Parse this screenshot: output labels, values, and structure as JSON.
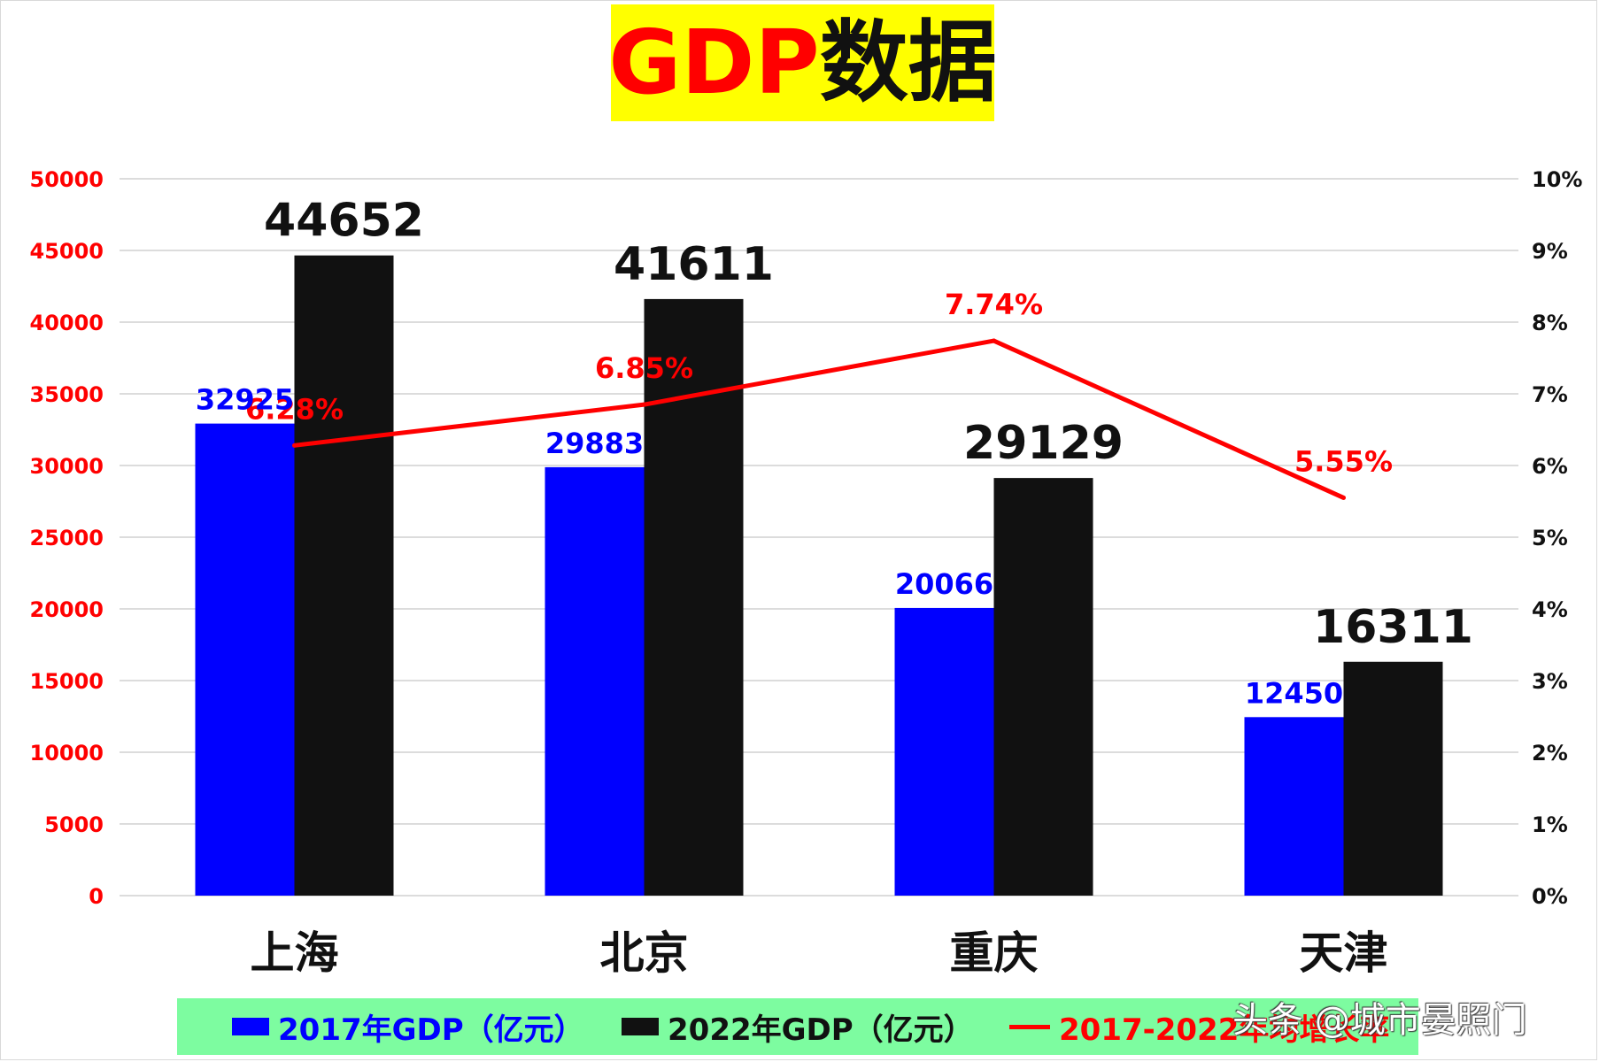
{
  "title": {
    "part1": "GDP",
    "part2": "数据"
  },
  "colors": {
    "bar2017": "#0000ff",
    "bar2022": "#111111",
    "growth": "#ff0000",
    "left_axis": "#ff0000",
    "right_axis": "#111111",
    "title_bg": "#ffff00",
    "legend_bg": "#7dfca0",
    "grid": "#d0d0d0"
  },
  "chart_data": {
    "type": "bar",
    "categories": [
      "上海",
      "北京",
      "重庆",
      "天津"
    ],
    "series": [
      {
        "name": "2017年GDP（亿元）",
        "axis": "left",
        "values": [
          32925,
          29883,
          20066,
          12450
        ]
      },
      {
        "name": "2022年GDP（亿元）",
        "axis": "left",
        "values": [
          44652,
          41611,
          29129,
          16311
        ]
      },
      {
        "name": "2017-2022年均增长率",
        "type": "line",
        "axis": "right",
        "values": [
          6.28,
          6.85,
          7.74,
          5.55
        ],
        "labels": [
          "6.28%",
          "6.85%",
          "7.74%",
          "5.55%"
        ]
      }
    ],
    "ylim": [
      0,
      50000
    ],
    "y_ticks": [
      "0",
      "5000",
      "10000",
      "15000",
      "20000",
      "25000",
      "30000",
      "35000",
      "40000",
      "45000",
      "50000"
    ],
    "y2lim": [
      0,
      10
    ],
    "y2_ticks": [
      "0%",
      "1%",
      "2%",
      "3%",
      "4%",
      "5%",
      "6%",
      "7%",
      "8%",
      "9%",
      "10%"
    ],
    "grid": true,
    "legend_position": "bottom"
  },
  "legend": {
    "items": [
      "2017年GDP（亿元）",
      "2022年GDP（亿元）",
      "2017-2022年均增长率"
    ]
  },
  "watermark": "头条 @城市晏照门"
}
